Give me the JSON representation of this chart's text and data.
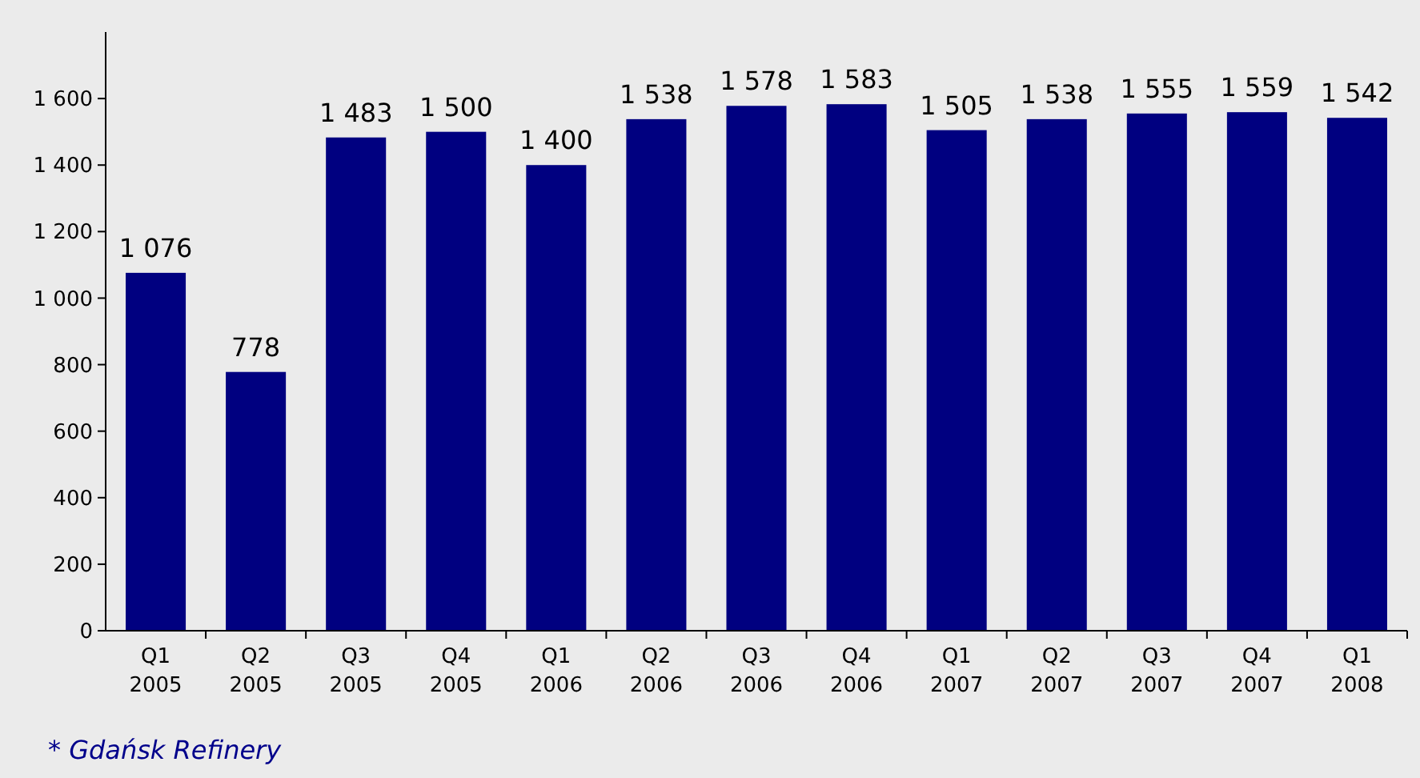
{
  "chart_data": {
    "type": "bar",
    "categories": [
      "Q1 2005",
      "Q2 2005",
      "Q3 2005",
      "Q4 2005",
      "Q1 2006",
      "Q2 2006",
      "Q3 2006",
      "Q4 2006",
      "Q1 2007",
      "Q2 2007",
      "Q3 2007",
      "Q4 2007",
      "Q1 2008"
    ],
    "values": [
      1076,
      778,
      1483,
      1500,
      1400,
      1538,
      1578,
      1583,
      1505,
      1538,
      1555,
      1559,
      1542
    ],
    "value_labels": [
      "1 076",
      "778",
      "1 483",
      "1 500",
      "1 400",
      "1 538",
      "1 578",
      "1 583",
      "1 505",
      "1 538",
      "1 555",
      "1 559",
      "1 542"
    ],
    "color": "#000080",
    "ylim": [
      0,
      1800
    ],
    "yticks": [
      0,
      200,
      400,
      600,
      800,
      {
        "value": 1000,
        "label": "1 000"
      },
      {
        "value": 1200,
        "label": "1 200"
      },
      {
        "value": 1400,
        "label": "1 400"
      },
      {
        "value": 1600,
        "label": "1 600"
      }
    ],
    "grid": false,
    "annotations": [
      "* Gdańsk Refinery"
    ]
  }
}
